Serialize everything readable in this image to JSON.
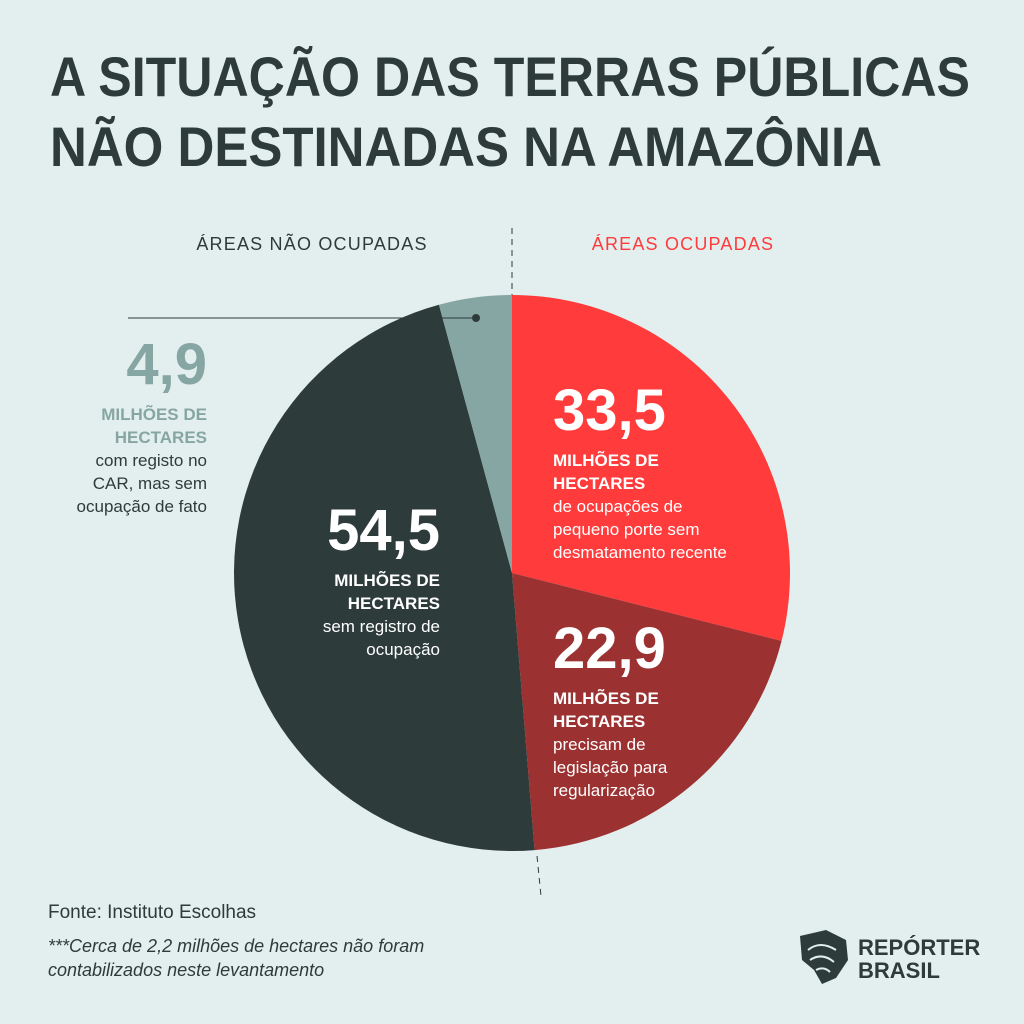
{
  "chart_data": {
    "type": "pie",
    "title": [
      "A SITUAÇÃO DAS TERRAS PÚBLICAS",
      "NÃO DESTINADAS NA AMAZÔNIA"
    ],
    "group_labels": [
      "ÁREAS NÃO OCUPADAS",
      "ÁREAS OCUPADAS"
    ],
    "values": [
      33.5,
      22.9,
      54.5,
      4.9
    ],
    "value_labels": [
      "33,5",
      "22,9",
      "54,5",
      "4,9"
    ],
    "colors": [
      "#ff3b3b",
      "#9b3131",
      "#2e3b3b",
      "#86a6a3"
    ],
    "unit_label": [
      "MILHÕES DE",
      "HECTARES"
    ],
    "categories": [
      [
        "de ocupações de",
        "pequeno porte sem",
        "desmatamento recente"
      ],
      [
        "precisam de",
        "legislação para",
        "regularização"
      ],
      [
        "sem registro de",
        "ocupação"
      ],
      [
        "com registo no",
        "CAR, mas sem",
        "ocupação de fato"
      ]
    ],
    "source": "Fonte: Instituto Escolhas",
    "note": [
      "***Cerca de 2,2 milhões de hectares não foram",
      "contabilizados neste levantamento"
    ],
    "logo": [
      "REPÓRTER",
      "BRASIL"
    ]
  }
}
